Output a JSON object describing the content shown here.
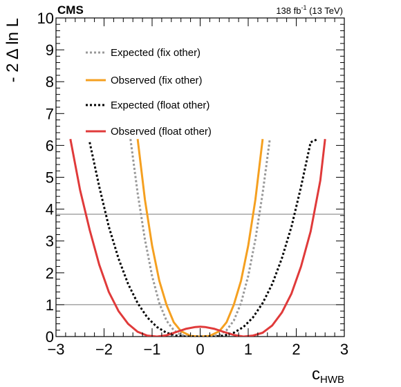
{
  "chart_data": {
    "type": "line",
    "experiment_label": "CMS",
    "luminosity_label": {
      "value": "138 fb",
      "sup": "-1",
      "suffix": " (13 TeV)"
    },
    "xlabel": {
      "main": "c",
      "sub": "HWB"
    },
    "ylabel": "- 2 Δ ln L",
    "xlim": [
      -3,
      3
    ],
    "ylim": [
      0,
      10
    ],
    "x_ticks": [
      -3,
      -2,
      -1,
      0,
      1,
      2,
      3
    ],
    "x_tick_labels": [
      "−3",
      "−2",
      "−1",
      "0",
      "1",
      "2",
      "3"
    ],
    "y_ticks": [
      0,
      1,
      2,
      3,
      4,
      5,
      6,
      7,
      8,
      9,
      10
    ],
    "y_tick_labels": [
      "0",
      "1",
      "2",
      "3",
      "4",
      "5",
      "6",
      "7",
      "8",
      "9",
      "10"
    ],
    "reference_lines": [
      1,
      3.84
    ],
    "grid": false,
    "legend_position": "top-left",
    "series": [
      {
        "name": "Expected (fix other)",
        "color": "#999999",
        "dash": "dotted",
        "x": [
          -1.45,
          -1.3,
          -1.15,
          -1.0,
          -0.85,
          -0.7,
          -0.55,
          -0.4,
          -0.2,
          0,
          0.2,
          0.4,
          0.55,
          0.7,
          0.85,
          1.0,
          1.15,
          1.3,
          1.45
        ],
        "y": [
          6.2,
          4.5,
          3.05,
          1.9,
          1.05,
          0.5,
          0.2,
          0.05,
          0.0,
          0.0,
          0.0,
          0.05,
          0.2,
          0.5,
          1.05,
          1.9,
          3.05,
          4.5,
          6.2
        ]
      },
      {
        "name": "Observed (fix other)",
        "color": "#f5a020",
        "dash": "solid",
        "x": [
          -1.3,
          -1.15,
          -1.0,
          -0.85,
          -0.7,
          -0.55,
          -0.4,
          -0.2,
          0,
          0.2,
          0.4,
          0.55,
          0.7,
          0.85,
          1.0,
          1.15,
          1.3
        ],
        "y": [
          6.2,
          4.3,
          2.85,
          1.75,
          1.0,
          0.45,
          0.17,
          0.02,
          0.0,
          0.02,
          0.17,
          0.45,
          1.0,
          1.75,
          2.85,
          4.3,
          6.2
        ]
      },
      {
        "name": "Expected (float other)",
        "color": "#000000",
        "dash": "dotted",
        "x": [
          -2.3,
          -2.1,
          -1.9,
          -1.7,
          -1.5,
          -1.3,
          -1.1,
          -0.9,
          -0.7,
          -0.5,
          -0.3,
          0,
          0.3,
          0.5,
          0.7,
          0.9,
          1.1,
          1.3,
          1.5,
          1.7,
          1.9,
          2.1,
          2.3,
          2.45
        ],
        "y": [
          6.1,
          4.7,
          3.45,
          2.45,
          1.65,
          1.05,
          0.6,
          0.3,
          0.12,
          0.03,
          0.0,
          0.0,
          0.0,
          0.03,
          0.12,
          0.3,
          0.6,
          1.05,
          1.65,
          2.45,
          3.45,
          4.7,
          6.1,
          6.2
        ]
      },
      {
        "name": "Observed (float other)",
        "color": "#e03a3a",
        "dash": "solid",
        "x": [
          -2.7,
          -2.5,
          -2.3,
          -2.1,
          -1.9,
          -1.7,
          -1.5,
          -1.3,
          -1.1,
          -0.9,
          -0.7,
          -0.5,
          -0.3,
          -0.1,
          0,
          0.1,
          0.3,
          0.5,
          0.7,
          0.9,
          1.1,
          1.3,
          1.5,
          1.7,
          1.9,
          2.1,
          2.3,
          2.5,
          2.6
        ],
        "y": [
          6.2,
          4.6,
          3.35,
          2.25,
          1.4,
          0.8,
          0.4,
          0.15,
          0.03,
          0.0,
          0.04,
          0.14,
          0.24,
          0.3,
          0.31,
          0.3,
          0.24,
          0.14,
          0.05,
          0.0,
          0.03,
          0.12,
          0.35,
          0.75,
          1.35,
          2.2,
          3.3,
          4.9,
          6.2
        ]
      }
    ]
  }
}
